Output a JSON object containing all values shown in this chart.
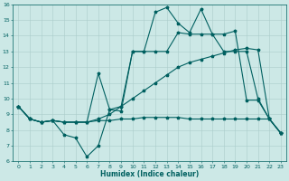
{
  "xlabel": "Humidex (Indice chaleur)",
  "xlim": [
    -0.5,
    23.5
  ],
  "ylim": [
    6,
    16
  ],
  "xticks": [
    0,
    1,
    2,
    3,
    4,
    5,
    6,
    7,
    8,
    9,
    10,
    11,
    12,
    13,
    14,
    15,
    16,
    17,
    18,
    19,
    20,
    21,
    22,
    23
  ],
  "yticks": [
    6,
    7,
    8,
    9,
    10,
    11,
    12,
    13,
    14,
    15,
    16
  ],
  "bg_color": "#cce8e6",
  "grid_color": "#aaccca",
  "line_color": "#006060",
  "lw": 0.8,
  "ms": 2.5,
  "lines": [
    [
      9.5,
      8.7,
      8.5,
      8.6,
      7.7,
      7.5,
      6.3,
      7.0,
      9.3,
      9.5,
      13.0,
      13.0,
      15.5,
      15.8,
      14.8,
      14.2,
      15.7,
      14.1,
      14.1,
      14.3,
      9.9,
      9.9,
      8.7,
      7.8
    ],
    [
      9.5,
      8.7,
      8.5,
      8.6,
      8.5,
      8.5,
      8.5,
      8.7,
      9.0,
      9.5,
      10.0,
      10.5,
      11.0,
      11.5,
      12.0,
      12.3,
      12.5,
      12.7,
      12.9,
      13.1,
      13.2,
      13.1,
      8.7,
      7.8
    ],
    [
      9.5,
      8.7,
      8.5,
      8.6,
      8.5,
      8.5,
      8.5,
      8.6,
      8.6,
      8.7,
      8.7,
      8.8,
      8.8,
      8.8,
      8.8,
      8.7,
      8.7,
      8.7,
      8.7,
      8.7,
      8.7,
      8.7,
      8.7,
      7.8
    ],
    [
      9.5,
      8.7,
      8.5,
      8.6,
      8.5,
      8.5,
      8.5,
      11.6,
      9.3,
      9.2,
      13.0,
      13.0,
      13.0,
      13.0,
      14.2,
      14.1,
      14.1,
      14.1,
      13.0,
      13.0,
      13.0,
      10.0,
      8.7,
      7.8
    ]
  ]
}
